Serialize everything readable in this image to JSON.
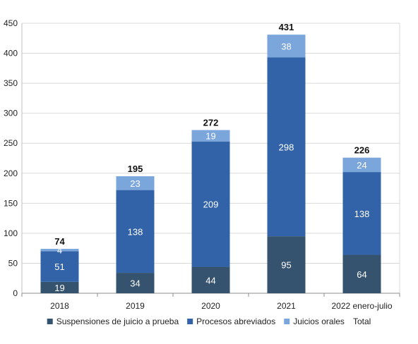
{
  "chart_data": {
    "type": "bar",
    "stacked": true,
    "title": "",
    "xlabel": "",
    "ylabel": "",
    "categories": [
      "2018",
      "2019",
      "2020",
      "2021",
      "2022 enero-julio"
    ],
    "series": [
      {
        "name": "Suspensiones de juicio a prueba",
        "color": "#35526e",
        "values": [
          19,
          34,
          44,
          95,
          64
        ]
      },
      {
        "name": "Procesos abreviados",
        "color": "#3263a8",
        "values": [
          51,
          138,
          209,
          298,
          138
        ]
      },
      {
        "name": "Juicios orales",
        "color": "#7ba6dc",
        "values": [
          4,
          23,
          19,
          38,
          24
        ]
      }
    ],
    "totals": {
      "name": "Total",
      "values": [
        74,
        195,
        272,
        431,
        226
      ]
    },
    "ylim": [
      0,
      450
    ],
    "yticks": [
      0,
      50,
      100,
      150,
      200,
      250,
      300,
      350,
      400,
      450
    ],
    "grid": true,
    "legend_position": "bottom"
  }
}
